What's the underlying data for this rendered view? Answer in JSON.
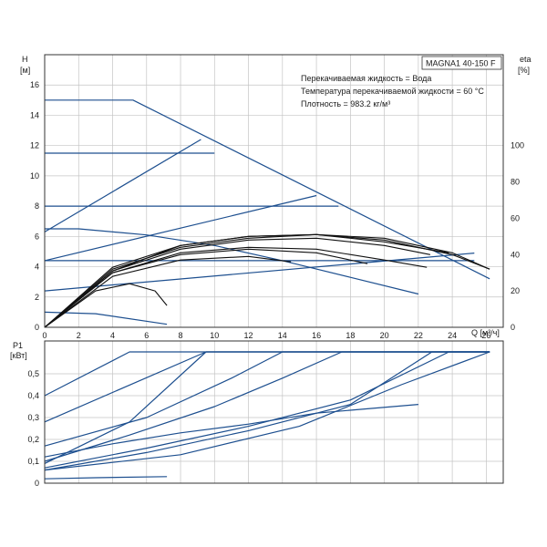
{
  "chart_data": [
    {
      "type": "line",
      "title": "MAGNA1 40-150 F",
      "notes": [
        "Перекачиваемая жидкость = Вода",
        "Температура перекачиваемой жидкости = 60 °C",
        "Плотность = 983.2 кг/м³"
      ],
      "xlabel": "Q [м³/ч]",
      "ylabel_left": "H",
      "ylabel_left_unit": "[м]",
      "ylabel_right": "eta",
      "ylabel_right_unit": "[%]",
      "xlim": [
        0,
        27
      ],
      "ylim_left": [
        0,
        18
      ],
      "ylim_right": [
        0,
        150
      ],
      "x_ticks": [
        0,
        2,
        4,
        6,
        8,
        10,
        12,
        14,
        16,
        18,
        20,
        22,
        24,
        26
      ],
      "y_ticks_left": [
        0,
        2,
        4,
        6,
        8,
        10,
        12,
        14,
        16
      ],
      "y_ticks_right": [
        0,
        20,
        40,
        60,
        80,
        100
      ],
      "grid": true,
      "colors": {
        "head": "#1d4f8f",
        "efficiency": "#111111",
        "grid": "#c4c4c4"
      },
      "head_series": [
        {
          "x": [
            0,
            5.2,
            26.2
          ],
          "y": [
            15,
            15,
            3.2
          ]
        },
        {
          "x": [
            0,
            9.2
          ],
          "y": [
            6.3,
            12.4
          ]
        },
        {
          "x": [
            0,
            10
          ],
          "y": [
            11.5,
            11.5
          ]
        },
        {
          "x": [
            0,
            17.3
          ],
          "y": [
            8,
            8
          ]
        },
        {
          "x": [
            0,
            16
          ],
          "y": [
            4.4,
            8.7
          ]
        },
        {
          "x": [
            0,
            25.3
          ],
          "y": [
            4.4,
            4.4
          ]
        },
        {
          "x": [
            0,
            25.3
          ],
          "y": [
            2.4,
            4.9
          ]
        },
        {
          "x": [
            0,
            2,
            6,
            10,
            14,
            18,
            22
          ],
          "y": [
            6.5,
            6.5,
            6.1,
            5.4,
            4.4,
            3.3,
            2.2
          ]
        },
        {
          "x": [
            0,
            3,
            7.2
          ],
          "y": [
            1.0,
            0.9,
            0.2
          ]
        }
      ],
      "efficiency_series": [
        {
          "x": [
            0,
            4,
            8,
            12,
            16,
            20,
            24,
            26.2
          ],
          "y": [
            0,
            32,
            44,
            49,
            51,
            49,
            41,
            32
          ]
        },
        {
          "x": [
            0,
            4,
            8,
            12,
            16,
            20,
            24,
            26.2
          ],
          "y": [
            0,
            31,
            45,
            50,
            51,
            48,
            40,
            32
          ]
        },
        {
          "x": [
            0,
            4,
            8,
            12,
            16,
            20,
            22.7
          ],
          "y": [
            0,
            31,
            43,
            48,
            49,
            45,
            40
          ]
        },
        {
          "x": [
            0,
            4,
            8,
            12,
            16,
            20,
            22.5
          ],
          "y": [
            0,
            30,
            41,
            44,
            43,
            37,
            33
          ]
        },
        {
          "x": [
            0,
            4,
            8,
            12,
            16,
            20,
            23.8
          ],
          "y": [
            0,
            33,
            45,
            50,
            51,
            47,
            41
          ]
        },
        {
          "x": [
            0,
            4,
            8,
            12,
            16,
            19
          ],
          "y": [
            0,
            30,
            40,
            43,
            41,
            35
          ]
        },
        {
          "x": [
            0,
            4,
            8,
            12,
            14.5
          ],
          "y": [
            0,
            28,
            37,
            39,
            36
          ]
        },
        {
          "x": [
            0,
            3,
            5,
            6.5,
            7.2
          ],
          "y": [
            0,
            20,
            24,
            20,
            12
          ]
        }
      ]
    },
    {
      "type": "line",
      "ylabel": "P1",
      "ylabel_unit": "[кВт]",
      "xlim": [
        0,
        27
      ],
      "ylim": [
        0,
        0.65
      ],
      "y_ticks": [
        0,
        0.1,
        0.2,
        0.3,
        0.4,
        0.5
      ],
      "grid": true,
      "colors": {
        "power": "#1d4f8f"
      },
      "series": [
        {
          "x": [
            0,
            5,
            26.2
          ],
          "y": [
            0.4,
            0.6,
            0.6
          ]
        },
        {
          "x": [
            0,
            9.5,
            26.2
          ],
          "y": [
            0.28,
            0.6,
            0.6
          ]
        },
        {
          "x": [
            0,
            6,
            11,
            14,
            26.2
          ],
          "y": [
            0.17,
            0.3,
            0.48,
            0.6,
            0.6
          ]
        },
        {
          "x": [
            0,
            5,
            10,
            14,
            17.5,
            26.2
          ],
          "y": [
            0.1,
            0.22,
            0.35,
            0.48,
            0.6,
            0.6
          ]
        },
        {
          "x": [
            0,
            4,
            8,
            12,
            16,
            22
          ],
          "y": [
            0.12,
            0.18,
            0.23,
            0.27,
            0.32,
            0.36
          ]
        },
        {
          "x": [
            0,
            6,
            12,
            18,
            23.8,
            26.2
          ],
          "y": [
            0.07,
            0.16,
            0.26,
            0.38,
            0.6,
            0.6
          ]
        },
        {
          "x": [
            0,
            6,
            12,
            18,
            22.8,
            26.2
          ],
          "y": [
            0.06,
            0.14,
            0.24,
            0.36,
            0.6,
            0.6
          ]
        },
        {
          "x": [
            0,
            5,
            9.5,
            26.2
          ],
          "y": [
            0.09,
            0.28,
            0.6,
            0.6
          ]
        },
        {
          "x": [
            0,
            8,
            15,
            21,
            26.2
          ],
          "y": [
            0.06,
            0.13,
            0.26,
            0.45,
            0.6
          ]
        },
        {
          "x": [
            0,
            3,
            7.2
          ],
          "y": [
            0.02,
            0.025,
            0.03
          ]
        }
      ]
    }
  ]
}
